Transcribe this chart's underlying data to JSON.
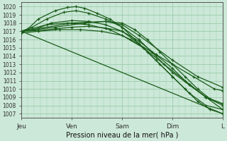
{
  "title": "Pression niveau de la mer( hPa )",
  "bg_color": "#cce8d8",
  "grid_color": "#99ccaa",
  "line_color": "#1a5c1a",
  "ylim": [
    1006.5,
    1020.5
  ],
  "yticks": [
    1007,
    1008,
    1009,
    1010,
    1011,
    1012,
    1013,
    1014,
    1015,
    1016,
    1017,
    1018,
    1019,
    1020
  ],
  "xtick_labels": [
    "Jeu",
    "Ven",
    "Sam",
    "Dim",
    "L"
  ],
  "xtick_positions": [
    0,
    24,
    48,
    72,
    96
  ],
  "xlim": [
    0,
    96
  ],
  "lines": [
    {
      "x": [
        0,
        3,
        8,
        16,
        22,
        26,
        30,
        36,
        42,
        48,
        54,
        60,
        66,
        72,
        78,
        84,
        90,
        96
      ],
      "y": [
        1017.0,
        1017.3,
        1018.5,
        1019.5,
        1019.9,
        1020.0,
        1019.8,
        1019.2,
        1018.5,
        1017.5,
        1016.0,
        1014.5,
        1013.0,
        1011.5,
        1010.0,
        1008.5,
        1007.5,
        1007.0
      ]
    },
    {
      "x": [
        0,
        5,
        12,
        20,
        26,
        32,
        40,
        48,
        56,
        64,
        72,
        80,
        88,
        96
      ],
      "y": [
        1017.0,
        1017.5,
        1018.5,
        1019.3,
        1019.5,
        1019.2,
        1018.5,
        1017.5,
        1016.0,
        1014.0,
        1012.0,
        1010.5,
        1009.0,
        1008.0
      ]
    },
    {
      "x": [
        0,
        6,
        14,
        24,
        32,
        40,
        48,
        56,
        64,
        72,
        80,
        88,
        96
      ],
      "y": [
        1017.0,
        1017.2,
        1018.0,
        1018.3,
        1018.2,
        1017.8,
        1017.0,
        1015.5,
        1013.5,
        1011.5,
        1009.5,
        1008.0,
        1007.5
      ]
    },
    {
      "x": [
        0,
        8,
        16,
        24,
        32,
        40,
        48,
        56,
        64,
        72,
        80,
        88,
        96
      ],
      "y": [
        1017.0,
        1017.1,
        1017.3,
        1017.5,
        1017.6,
        1017.4,
        1017.0,
        1015.8,
        1014.2,
        1012.5,
        1010.5,
        1009.0,
        1008.2
      ]
    },
    {
      "x": [
        0,
        8,
        18,
        28,
        38,
        48,
        58,
        68,
        78,
        88,
        96
      ],
      "y": [
        1016.8,
        1017.0,
        1017.2,
        1017.2,
        1017.0,
        1016.5,
        1015.0,
        1013.0,
        1011.0,
        1009.0,
        1007.5
      ]
    },
    {
      "x": [
        0,
        96
      ],
      "y": [
        1017.0,
        1007.0
      ]
    },
    {
      "x": [
        0,
        24,
        40,
        48,
        56,
        72,
        84,
        96
      ],
      "y": [
        1017.0,
        1018.0,
        1018.2,
        1017.8,
        1016.5,
        1013.5,
        1011.5,
        1010.2
      ]
    },
    {
      "x": [
        0,
        12,
        22,
        32,
        42,
        52,
        62,
        72,
        82,
        92,
        96
      ],
      "y": [
        1017.0,
        1017.8,
        1018.0,
        1017.8,
        1017.2,
        1016.0,
        1014.5,
        1013.0,
        1011.5,
        1010.0,
        1009.8
      ]
    },
    {
      "x": [
        0,
        16,
        30,
        40,
        48,
        54,
        60,
        66,
        72,
        78,
        84,
        90,
        96
      ],
      "y": [
        1017.0,
        1017.5,
        1018.0,
        1018.2,
        1018.0,
        1017.2,
        1016.0,
        1014.5,
        1013.0,
        1011.5,
        1010.0,
        1008.8,
        1008.2
      ]
    }
  ]
}
